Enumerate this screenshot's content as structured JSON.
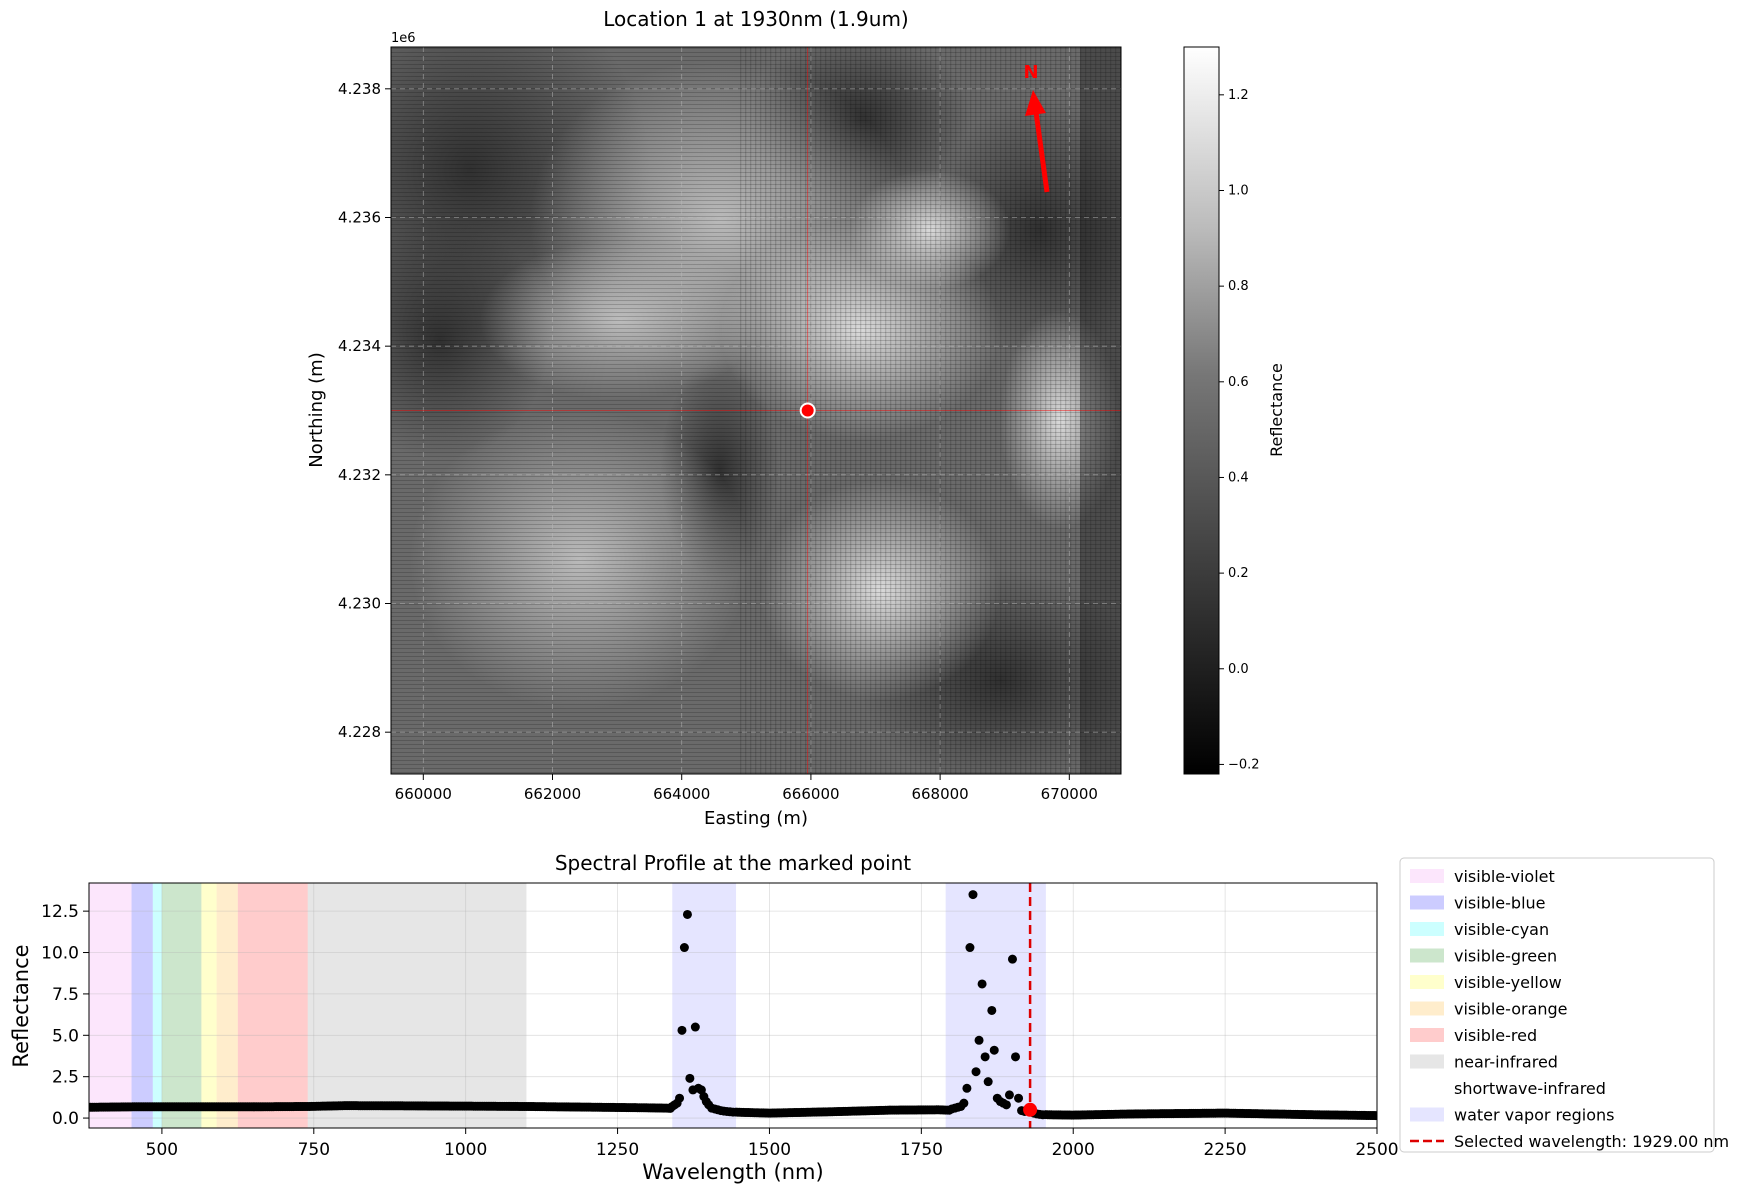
{
  "chart_data": [
    {
      "type": "heatmap",
      "title": "Location 1 at 1930nm (1.9um)",
      "xlabel": "Easting (m)",
      "ylabel": "Northing (m)",
      "xlim": [
        659500,
        670800
      ],
      "ylim": [
        4227350,
        4238650
      ],
      "x_ticks": [
        660000,
        662000,
        664000,
        666000,
        668000,
        670000
      ],
      "x_tick_labels": [
        "660000",
        "662000",
        "664000",
        "666000",
        "668000",
        "670000"
      ],
      "y_ticks": [
        4228000,
        4230000,
        4232000,
        4234000,
        4236000,
        4238000
      ],
      "y_tick_labels": [
        "4.228",
        "4.230",
        "4.232",
        "4.234",
        "4.236",
        "4.238"
      ],
      "y_offset_label": "1e6",
      "grid": true,
      "colormap": "gray",
      "marked_point": {
        "x": 665950,
        "y": 4233000,
        "color": "#ff0000"
      },
      "north_arrow": {
        "label": "N",
        "color": "#ff0000"
      },
      "colorbar": {
        "label": "Reflectance",
        "range": [
          -0.22,
          1.3
        ],
        "ticks": [
          -0.2,
          0.0,
          0.2,
          0.4,
          0.6,
          0.8,
          1.0,
          1.2
        ],
        "tick_labels": [
          "−0.2",
          "0.0",
          "0.2",
          "0.4",
          "0.6",
          "0.8",
          "1.0",
          "1.2"
        ]
      }
    },
    {
      "type": "scatter",
      "title": "Spectral Profile at the marked point",
      "xlabel": "Wavelength (nm)",
      "ylabel": "Reflectance",
      "xlim": [
        380,
        2500
      ],
      "ylim": [
        -0.6,
        14.2
      ],
      "x_ticks": [
        500,
        750,
        1000,
        1250,
        1500,
        1750,
        2000,
        2250,
        2500
      ],
      "x_tick_labels": [
        "500",
        "750",
        "1000",
        "1250",
        "1500",
        "1750",
        "2000",
        "2250",
        "2500"
      ],
      "y_ticks": [
        0.0,
        2.5,
        5.0,
        7.5,
        10.0,
        12.5
      ],
      "y_tick_labels": [
        "0.0",
        "2.5",
        "5.0",
        "7.5",
        "10.0",
        "12.5"
      ],
      "grid": true,
      "legend_position": "outside-right",
      "bands": [
        {
          "name": "visible-violet",
          "start": 380,
          "end": 450,
          "color": "#ee82ee",
          "alpha": 0.2
        },
        {
          "name": "visible-blue",
          "start": 450,
          "end": 485,
          "color": "#0000ff",
          "alpha": 0.2
        },
        {
          "name": "visible-cyan",
          "start": 485,
          "end": 500,
          "color": "#00ffff",
          "alpha": 0.2
        },
        {
          "name": "visible-green",
          "start": 500,
          "end": 565,
          "color": "#008000",
          "alpha": 0.2
        },
        {
          "name": "visible-yellow",
          "start": 565,
          "end": 590,
          "color": "#ffff00",
          "alpha": 0.2
        },
        {
          "name": "visible-orange",
          "start": 590,
          "end": 625,
          "color": "#ffa500",
          "alpha": 0.2
        },
        {
          "name": "visible-red",
          "start": 625,
          "end": 740,
          "color": "#ff0000",
          "alpha": 0.2
        },
        {
          "name": "near-infrared",
          "start": 740,
          "end": 1100,
          "color": "#808080",
          "alpha": 0.2
        },
        {
          "name": "shortwave-infrared",
          "start": 1100,
          "end": 2500,
          "color": "#ffffff",
          "alpha": 0.2
        },
        {
          "name": "water vapor regions",
          "ranges": [
            [
              1340,
              1445
            ],
            [
              1790,
              1955
            ]
          ],
          "color": "#0000ff",
          "alpha": 0.1
        }
      ],
      "selected_wavelength": {
        "value": 1929.0,
        "label": "Selected wavelength: 1929.00 nm",
        "color": "#dd0000"
      },
      "selected_point": {
        "x": 1929,
        "y": 0.5,
        "color": "#ff0000"
      },
      "baseline": [
        [
          380,
          0.65
        ],
        [
          450,
          0.68
        ],
        [
          550,
          0.68
        ],
        [
          650,
          0.68
        ],
        [
          740,
          0.7
        ],
        [
          800,
          0.75
        ],
        [
          900,
          0.74
        ],
        [
          1000,
          0.72
        ],
        [
          1100,
          0.7
        ],
        [
          1200,
          0.66
        ],
        [
          1300,
          0.62
        ],
        [
          1330,
          0.6
        ],
        [
          1450,
          0.35
        ],
        [
          1500,
          0.3
        ],
        [
          1600,
          0.38
        ],
        [
          1700,
          0.48
        ],
        [
          1780,
          0.5
        ],
        [
          1960,
          0.2
        ],
        [
          2000,
          0.18
        ],
        [
          2100,
          0.25
        ],
        [
          2250,
          0.3
        ],
        [
          2400,
          0.2
        ],
        [
          2500,
          0.15
        ]
      ],
      "baseline_step_nm": 3,
      "points": [
        [
          1340,
          0.7
        ],
        [
          1344,
          0.8
        ],
        [
          1348,
          0.9
        ],
        [
          1352,
          1.2
        ],
        [
          1356,
          5.3
        ],
        [
          1360,
          10.3
        ],
        [
          1365,
          12.3
        ],
        [
          1369,
          2.4
        ],
        [
          1374,
          1.7
        ],
        [
          1378,
          5.5
        ],
        [
          1383,
          1.8
        ],
        [
          1388,
          1.7
        ],
        [
          1392,
          1.3
        ],
        [
          1396,
          1.0
        ],
        [
          1400,
          0.8
        ],
        [
          1405,
          0.6
        ],
        [
          1410,
          0.55
        ],
        [
          1415,
          0.5
        ],
        [
          1420,
          0.45
        ],
        [
          1425,
          0.42
        ],
        [
          1430,
          0.4
        ],
        [
          1435,
          0.38
        ],
        [
          1440,
          0.36
        ],
        [
          1800,
          0.55
        ],
        [
          1805,
          0.6
        ],
        [
          1810,
          0.65
        ],
        [
          1815,
          0.7
        ],
        [
          1820,
          0.9
        ],
        [
          1825,
          1.8
        ],
        [
          1830,
          10.3
        ],
        [
          1835,
          13.5
        ],
        [
          1840,
          2.8
        ],
        [
          1845,
          4.7
        ],
        [
          1850,
          8.1
        ],
        [
          1855,
          3.7
        ],
        [
          1860,
          2.2
        ],
        [
          1866,
          6.5
        ],
        [
          1870,
          4.1
        ],
        [
          1875,
          1.2
        ],
        [
          1880,
          1.0
        ],
        [
          1885,
          0.9
        ],
        [
          1890,
          0.8
        ],
        [
          1895,
          1.4
        ],
        [
          1900,
          9.6
        ],
        [
          1905,
          3.7
        ],
        [
          1910,
          1.2
        ],
        [
          1915,
          0.45
        ],
        [
          1920,
          0.4
        ],
        [
          1925,
          0.45
        ],
        [
          1930,
          0.5
        ],
        [
          1935,
          0.3
        ],
        [
          1940,
          0.25
        ],
        [
          1945,
          0.22
        ],
        [
          1950,
          0.2
        ]
      ]
    }
  ]
}
